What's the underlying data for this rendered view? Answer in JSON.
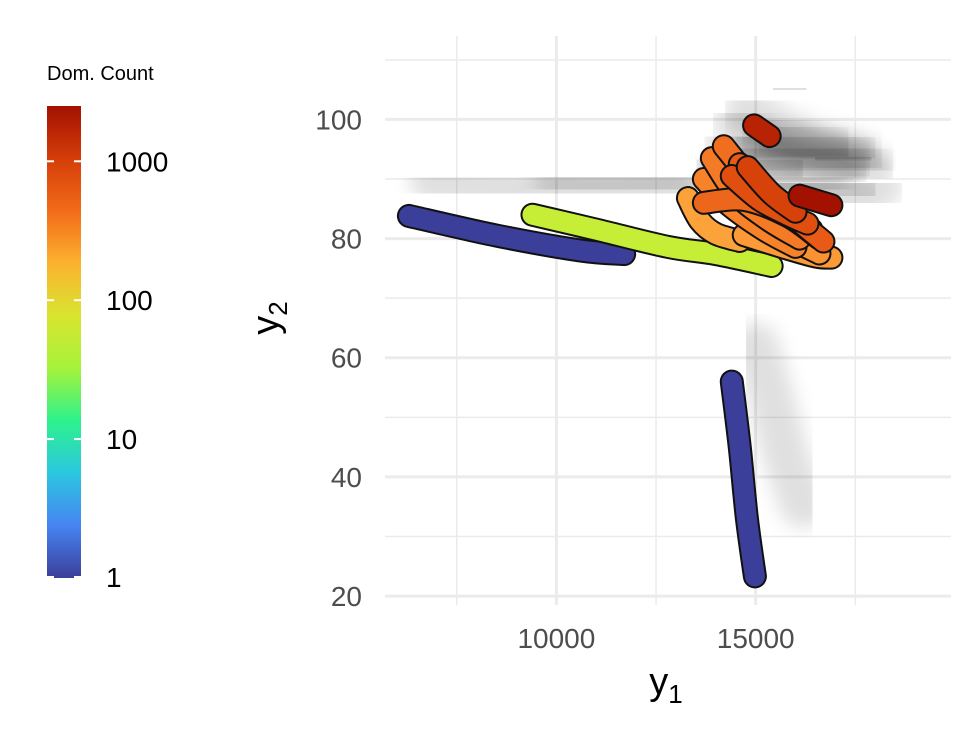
{
  "chart_data": {
    "type": "scatter",
    "xlabel": "y",
    "xlabel_subscript": "1",
    "ylabel": "y",
    "ylabel_subscript": "2",
    "xlim": [
      5700,
      19900
    ],
    "ylim": [
      18.5,
      114
    ],
    "x_ticks": [
      10000,
      15000
    ],
    "x_tick_labels": [
      "10000",
      "15000"
    ],
    "y_ticks": [
      20,
      40,
      60,
      80,
      100
    ],
    "y_tick_labels": [
      "20",
      "40",
      "60",
      "80",
      "100"
    ],
    "grid": true,
    "legend": {
      "title": "Dom. Count",
      "position": "left",
      "scale": "log10",
      "range": [
        1,
        2500
      ],
      "breaks": [
        1,
        10,
        100,
        1000
      ],
      "break_labels": [
        "1",
        "10",
        "100",
        "1000"
      ],
      "colormap": [
        "#3b3f9a",
        "#4684f2",
        "#2bc7e0",
        "#2ef28c",
        "#a6f23a",
        "#d9e530",
        "#fbb22f",
        "#f36b19",
        "#d43d09",
        "#a31101"
      ]
    },
    "shadow_color": "#000000",
    "series": [
      {
        "count": 1,
        "color": "#3b3f9a",
        "path": [
          [
            6300,
            83.8
          ],
          [
            8500,
            80.5
          ],
          [
            10600,
            78.0
          ],
          [
            11700,
            77.4
          ]
        ]
      },
      {
        "count": 1,
        "color": "#3b3f9a",
        "path": [
          [
            14400,
            56
          ],
          [
            14600,
            45
          ],
          [
            14780,
            33
          ],
          [
            14980,
            23.3
          ]
        ]
      },
      {
        "count": 1,
        "color": "#3b3f9a",
        "path": [
          [
            14150,
            77.3
          ],
          [
            14550,
            77.1
          ]
        ]
      },
      {
        "count": 150,
        "color": "#c6ee36",
        "path": [
          [
            9400,
            84.0
          ],
          [
            11000,
            81.5
          ],
          [
            12800,
            78.6
          ],
          [
            14000,
            77.4
          ],
          [
            15400,
            75.4
          ]
        ]
      },
      {
        "count": 25,
        "color": "#35ed86",
        "path": [
          [
            13900,
            78.4
          ],
          [
            14350,
            77.0
          ],
          [
            14700,
            76.5
          ]
        ]
      },
      {
        "count": 300,
        "color": "#fba33a",
        "path": [
          [
            13300,
            86.8
          ],
          [
            13600,
            83.0
          ],
          [
            14000,
            80.8
          ],
          [
            14600,
            79.6
          ]
        ]
      },
      {
        "count": 350,
        "color": "#fb9a36",
        "path": [
          [
            14700,
            80.6
          ],
          [
            15700,
            78.5
          ],
          [
            16500,
            77.0
          ],
          [
            16900,
            76.8
          ]
        ]
      },
      {
        "count": 400,
        "color": "#fa9231",
        "path": [
          [
            15000,
            83.0
          ],
          [
            15900,
            79.8
          ],
          [
            16600,
            77.5
          ]
        ]
      },
      {
        "count": 500,
        "color": "#f7822a",
        "path": [
          [
            13700,
            90.0
          ],
          [
            14300,
            85.8
          ],
          [
            15200,
            81.5
          ],
          [
            16000,
            78.6
          ]
        ]
      },
      {
        "count": 600,
        "color": "#f47a26",
        "path": [
          [
            13900,
            93.5
          ],
          [
            14500,
            87.5
          ],
          [
            15300,
            83.2
          ],
          [
            16100,
            80.0
          ]
        ]
      },
      {
        "count": 700,
        "color": "#f06e20",
        "path": [
          [
            14200,
            95.5
          ],
          [
            14900,
            89.8
          ],
          [
            15600,
            85.2
          ],
          [
            16400,
            81.5
          ]
        ]
      },
      {
        "count": 800,
        "color": "#ec661c",
        "path": [
          [
            13700,
            86.0
          ],
          [
            14700,
            86.5
          ],
          [
            15800,
            83.8
          ],
          [
            16600,
            80.0
          ]
        ]
      },
      {
        "count": 1100,
        "color": "#e85a15",
        "path": [
          [
            14600,
            92.5
          ],
          [
            15200,
            88.5
          ],
          [
            15900,
            84.0
          ],
          [
            16700,
            79.5
          ]
        ]
      },
      {
        "count": 1300,
        "color": "#e04f10",
        "path": [
          [
            14400,
            90.5
          ],
          [
            15100,
            86.5
          ],
          [
            15800,
            84.0
          ],
          [
            16300,
            82.5
          ]
        ]
      },
      {
        "count": 1700,
        "color": "#d7420b",
        "path": [
          [
            14800,
            92.0
          ],
          [
            15400,
            87.5
          ],
          [
            16000,
            84.5
          ]
        ]
      },
      {
        "count": 2200,
        "color": "#b82305",
        "path": [
          [
            14960,
            99.0
          ],
          [
            15350,
            97.2
          ]
        ]
      },
      {
        "count": 2400,
        "color": "#a31101",
        "path": [
          [
            16100,
            87.2
          ],
          [
            16900,
            85.6
          ]
        ]
      }
    ]
  }
}
